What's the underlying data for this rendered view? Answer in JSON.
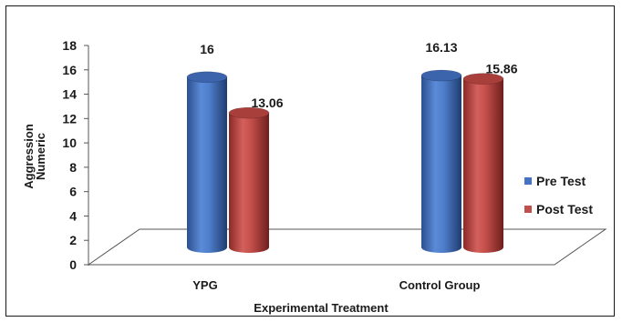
{
  "chart_data": {
    "type": "bar",
    "style": "3d-cylinder",
    "categories": [
      "YPG",
      "Control Group"
    ],
    "series": [
      {
        "name": "Pre Test",
        "values": [
          16,
          16.13
        ],
        "labels": [
          "16",
          "16.13"
        ],
        "color": "#4472c4"
      },
      {
        "name": "Post Test",
        "values": [
          13.06,
          15.86
        ],
        "labels": [
          "13.06",
          "15.86"
        ],
        "color": "#c0504d"
      }
    ],
    "xlabel": "Experimental Treatment",
    "ylabel": "Aggression Numeric",
    "ylabel_lines": [
      "Aggression",
      "Numeric"
    ],
    "ylim": [
      0,
      18
    ],
    "yticks": [
      "0",
      "2",
      "4",
      "6",
      "8",
      "10",
      "12",
      "14",
      "16",
      "18"
    ],
    "grid": false,
    "legend_position": "right"
  }
}
